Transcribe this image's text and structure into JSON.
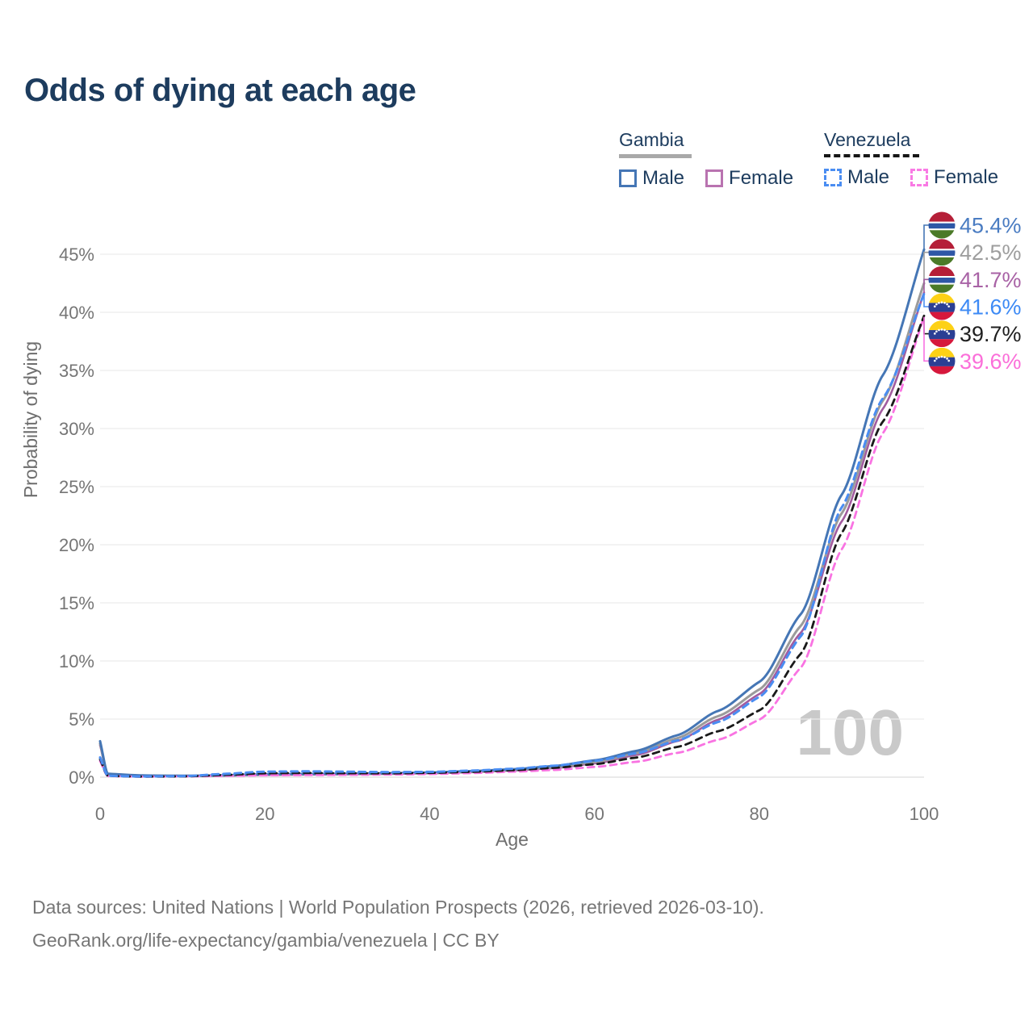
{
  "title": "Odds of dying at each age",
  "legend": {
    "groups": [
      {
        "country": "Gambia",
        "line_style": "solid",
        "line_color": "#a9a9a9",
        "items": [
          {
            "label": "Male",
            "color": "#4576b5",
            "dashed": false
          },
          {
            "label": "Female",
            "color": "#b973b0",
            "dashed": false
          }
        ]
      },
      {
        "country": "Venezuela",
        "line_style": "dashed",
        "line_color": "#161616",
        "items": [
          {
            "label": "Male",
            "color": "#4a8df2",
            "dashed": true
          },
          {
            "label": "Female",
            "color": "#f97ae4",
            "dashed": true
          }
        ]
      }
    ]
  },
  "watermark": "100",
  "footer": {
    "line1": "Data sources: United Nations | World Population Prospects (2026, retrieved 2026-03-10).",
    "line2": "GeoRank.org/life-expectancy/gambia/venezuela | CC BY"
  },
  "flags": {
    "gambia": {
      "red": "#b51f38",
      "white": "#ffffff",
      "blue": "#2e57a6",
      "green": "#4b7a28"
    },
    "venezuela": {
      "yellow": "#fdd116",
      "blue": "#2b3f94",
      "red": "#d6183c",
      "stars": "#ffffff"
    }
  },
  "chart_data": {
    "type": "line",
    "title": "Odds of dying at each age",
    "xlabel": "Age",
    "ylabel": "Probability of dying",
    "xlim": [
      0,
      100
    ],
    "ylim": [
      0,
      47
    ],
    "grid": "horizontal",
    "legend_position": "top-right",
    "x_ticks": [
      0,
      20,
      40,
      60,
      80,
      100
    ],
    "y_ticks": [
      {
        "value": 0,
        "label": "0%"
      },
      {
        "value": 5,
        "label": "5%"
      },
      {
        "value": 10,
        "label": "10%"
      },
      {
        "value": 15,
        "label": "15%"
      },
      {
        "value": 20,
        "label": "20%"
      },
      {
        "value": 25,
        "label": "25%"
      },
      {
        "value": 30,
        "label": "30%"
      },
      {
        "value": 35,
        "label": "35%"
      },
      {
        "value": 40,
        "label": "40%"
      },
      {
        "value": 45,
        "label": "45%"
      }
    ],
    "ages": [
      0,
      1,
      5,
      10,
      15,
      20,
      25,
      30,
      35,
      40,
      45,
      50,
      55,
      60,
      65,
      70,
      75,
      80,
      85,
      90,
      95,
      100
    ],
    "series": [
      {
        "name": "Gambia – Female",
        "country": "Gambia",
        "sex": "Female",
        "style": "solid",
        "color": "#a25c9f",
        "width": 2.6,
        "end_label": "41.7%",
        "label_color": "#a862a5",
        "flag": "gambia",
        "values": [
          2.75,
          0.26,
          0.13,
          0.1,
          0.13,
          0.19,
          0.22,
          0.25,
          0.28,
          0.33,
          0.43,
          0.57,
          0.78,
          1.18,
          1.9,
          3.1,
          4.95,
          7.15,
          12.4,
          22.0,
          31.7,
          41.7
        ]
      },
      {
        "name": "Gambia – Both sexes",
        "country": "Gambia",
        "sex": "Both",
        "style": "solid",
        "color": "#9b9b9b",
        "width": 3,
        "end_label": "42.5%",
        "label_color": "#9e9e9e",
        "flag": "gambia",
        "values": [
          2.9,
          0.28,
          0.14,
          0.11,
          0.14,
          0.22,
          0.25,
          0.27,
          0.31,
          0.36,
          0.47,
          0.62,
          0.85,
          1.3,
          2.05,
          3.35,
          5.25,
          7.55,
          13.0,
          22.7,
          32.4,
          42.5
        ]
      },
      {
        "name": "Gambia – Male",
        "country": "Gambia",
        "sex": "Male",
        "style": "solid",
        "color": "#4576b5",
        "width": 3,
        "end_label": "45.4%",
        "label_color": "#4a7cc2",
        "flag": "gambia",
        "values": [
          3.1,
          0.3,
          0.15,
          0.12,
          0.16,
          0.25,
          0.28,
          0.3,
          0.34,
          0.4,
          0.52,
          0.68,
          0.95,
          1.45,
          2.25,
          3.6,
          5.7,
          8.2,
          14.0,
          24.3,
          34.6,
          45.4
        ]
      },
      {
        "name": "Venezuela – Female",
        "country": "Venezuela",
        "sex": "Female",
        "style": "dashed",
        "color": "#f973e2",
        "width": 2.8,
        "end_label": "39.6%",
        "label_color": "#fb6fd9",
        "flag": "venezuela",
        "values": [
          1.4,
          0.1,
          0.05,
          0.06,
          0.11,
          0.16,
          0.18,
          0.2,
          0.23,
          0.27,
          0.35,
          0.47,
          0.62,
          0.88,
          1.32,
          2.08,
          3.22,
          4.95,
          9.4,
          19.6,
          29.6,
          39.6
        ]
      },
      {
        "name": "Venezuela – Both sexes",
        "country": "Venezuela",
        "sex": "Both",
        "style": "dashed",
        "color": "#1a1a1a",
        "width": 2.8,
        "end_label": "39.7%",
        "label_color": "#1f1f1f",
        "flag": "venezuela",
        "values": [
          1.55,
          0.11,
          0.05,
          0.07,
          0.19,
          0.33,
          0.36,
          0.34,
          0.33,
          0.37,
          0.46,
          0.6,
          0.8,
          1.12,
          1.68,
          2.6,
          3.95,
          5.75,
          10.6,
          21.0,
          30.6,
          39.7
        ]
      },
      {
        "name": "Venezuela – Male",
        "country": "Venezuela",
        "sex": "Male",
        "style": "dashed",
        "color": "#4a8df2",
        "width": 3,
        "end_label": "41.6%",
        "label_color": "#3d8af5",
        "flag": "venezuela",
        "values": [
          1.7,
          0.12,
          0.06,
          0.09,
          0.28,
          0.47,
          0.5,
          0.47,
          0.44,
          0.46,
          0.56,
          0.72,
          0.98,
          1.4,
          2.05,
          3.15,
          4.75,
          6.9,
          12.1,
          23.2,
          32.6,
          41.6
        ]
      }
    ],
    "end_label_order_top_to_bottom": [
      "45.4%",
      "42.5%",
      "41.7%",
      "41.6%",
      "39.7%",
      "39.6%"
    ]
  }
}
